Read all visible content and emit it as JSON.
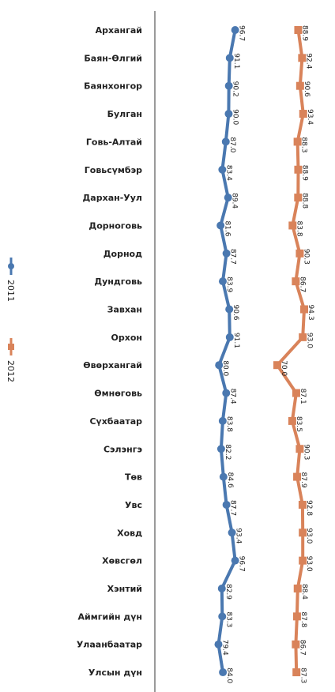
{
  "chart_data": {
    "type": "line",
    "orientation": "vertical-categories",
    "categories": [
      "Архангай",
      "Баян-Өлгий",
      "Баянхонгор",
      "Булган",
      "Говь-Алтай",
      "Говьсүмбэр",
      "Дархан-Уул",
      "Дорноговь",
      "Дорнод",
      "Дундговь",
      "Завхан",
      "Орхон",
      "Өвөрхангай",
      "Өмнөговь",
      "Сүхбаатар",
      "Сэлэнгэ",
      "Төв",
      "Увс",
      "Ховд",
      "Хөвсгөл",
      "Хэнтий",
      "Аймгийн дүн",
      "Улаанбаатар",
      "Улсын дүн"
    ],
    "series": [
      {
        "name": "2011",
        "color": "#4a78b0",
        "values": [
          96.7,
          91.1,
          90.2,
          90.0,
          87.0,
          83.4,
          89.4,
          81.6,
          87.7,
          83.9,
          90.6,
          91.1,
          80.0,
          87.4,
          83.8,
          82.2,
          84.6,
          87.7,
          93.4,
          96.7,
          82.9,
          83.3,
          79.4,
          84.0
        ],
        "labels": [
          "96.7",
          "91.1",
          "90.2",
          "90.0",
          "87.0",
          "83.4",
          "89.4",
          "81.6",
          "87.7",
          "83.9",
          "90.6",
          "91.1",
          "80.0",
          "87.4",
          "83.8",
          "82.2",
          "84.6",
          "87.7",
          "93.4",
          "96.7",
          "82.9",
          "83.3",
          "79.4",
          "84.0"
        ]
      },
      {
        "name": "2012",
        "color": "#d9835a",
        "values": [
          88.9,
          92.4,
          90.6,
          93.4,
          88.3,
          88.9,
          88.8,
          83.8,
          90.3,
          86.7,
          94.3,
          93.0,
          70.0,
          87.1,
          83.5,
          90.3,
          87.9,
          92.8,
          93.0,
          93.0,
          88.4,
          87.8,
          86.7,
          87.3
        ],
        "labels": [
          "88.9",
          "92.4",
          "90.6",
          "93.4",
          "88.3",
          "88.9",
          "88.8",
          "83.8",
          "90.3",
          "86.7",
          "94.3",
          "93.0",
          "70.0",
          "87.1",
          "83.5",
          "90.3",
          "87.9",
          "92.8",
          "93.0",
          "93.0",
          "88.4",
          "87.8",
          "86.7",
          "87.3"
        ]
      }
    ],
    "legend": {
      "placement": "left",
      "entries": [
        "2011",
        "2012"
      ]
    },
    "grid": false,
    "title": "",
    "xlabel": "",
    "ylabel": ""
  }
}
